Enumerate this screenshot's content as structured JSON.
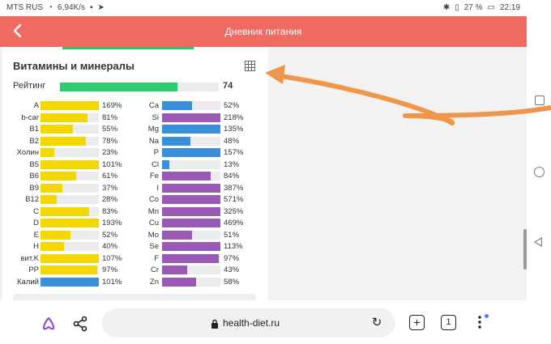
{
  "statusbar": {
    "carrier": "MTS RUS",
    "speed": "6,94K/s",
    "battery": "27 %",
    "time": "22:19"
  },
  "navbar": {
    "title": "Дневник питания"
  },
  "section": {
    "heading": "Витамины и минералы",
    "rating_label": "Рейтинг",
    "rating_value": "74",
    "rating_fraction": 0.74
  },
  "colors": {
    "header_bg": "#ef6b62",
    "vitamin": "#f2d800",
    "mineral_blue": "#3a8fdb",
    "mineral_purple": "#9b59b6",
    "rating": "#2ecc71",
    "annotation_arrow": "#f0964a"
  },
  "nutrients_left": [
    {
      "name": "A",
      "value": "169%",
      "pct": 169,
      "color": "#f2d800"
    },
    {
      "name": "b-car",
      "value": "81%",
      "pct": 81,
      "color": "#f2d800"
    },
    {
      "name": "B1",
      "value": "55%",
      "pct": 55,
      "color": "#f2d800"
    },
    {
      "name": "B2",
      "value": "78%",
      "pct": 78,
      "color": "#f2d800"
    },
    {
      "name": "Холин",
      "value": "23%",
      "pct": 23,
      "color": "#f2d800"
    },
    {
      "name": "B5",
      "value": "101%",
      "pct": 101,
      "color": "#f2d800"
    },
    {
      "name": "B6",
      "value": "61%",
      "pct": 61,
      "color": "#f2d800"
    },
    {
      "name": "B9",
      "value": "37%",
      "pct": 37,
      "color": "#f2d800"
    },
    {
      "name": "B12",
      "value": "28%",
      "pct": 28,
      "color": "#f2d800"
    },
    {
      "name": "C",
      "value": "83%",
      "pct": 83,
      "color": "#f2d800"
    },
    {
      "name": "D",
      "value": "193%",
      "pct": 193,
      "color": "#f2d800"
    },
    {
      "name": "E",
      "value": "52%",
      "pct": 52,
      "color": "#f2d800"
    },
    {
      "name": "H",
      "value": "40%",
      "pct": 40,
      "color": "#f2d800"
    },
    {
      "name": "вит.K",
      "value": "107%",
      "pct": 107,
      "color": "#f2d800"
    },
    {
      "name": "PP",
      "value": "97%",
      "pct": 97,
      "color": "#f2d800"
    },
    {
      "name": "Калий",
      "value": "101%",
      "pct": 101,
      "color": "#3a8fdb"
    }
  ],
  "nutrients_right": [
    {
      "name": "Ca",
      "value": "52%",
      "pct": 52,
      "color": "#3a8fdb"
    },
    {
      "name": "Si",
      "value": "218%",
      "pct": 218,
      "color": "#9b59b6"
    },
    {
      "name": "Mg",
      "value": "135%",
      "pct": 135,
      "color": "#3a8fdb"
    },
    {
      "name": "Na",
      "value": "48%",
      "pct": 48,
      "color": "#3a8fdb"
    },
    {
      "name": "P",
      "value": "157%",
      "pct": 157,
      "color": "#3a8fdb"
    },
    {
      "name": "Cl",
      "value": "13%",
      "pct": 13,
      "color": "#3a8fdb"
    },
    {
      "name": "Fe",
      "value": "84%",
      "pct": 84,
      "color": "#9b59b6"
    },
    {
      "name": "I",
      "value": "387%",
      "pct": 387,
      "color": "#9b59b6"
    },
    {
      "name": "Co",
      "value": "571%",
      "pct": 571,
      "color": "#9b59b6"
    },
    {
      "name": "Mn",
      "value": "325%",
      "pct": 325,
      "color": "#9b59b6"
    },
    {
      "name": "Cu",
      "value": "469%",
      "pct": 469,
      "color": "#9b59b6"
    },
    {
      "name": "Mo",
      "value": "51%",
      "pct": 51,
      "color": "#9b59b6"
    },
    {
      "name": "Se",
      "value": "113%",
      "pct": 113,
      "color": "#9b59b6"
    },
    {
      "name": "F",
      "value": "97%",
      "pct": 97,
      "color": "#9b59b6"
    },
    {
      "name": "Cr",
      "value": "43%",
      "pct": 43,
      "color": "#9b59b6"
    },
    {
      "name": "Zn",
      "value": "58%",
      "pct": 58,
      "color": "#9b59b6"
    }
  ],
  "browser": {
    "url": "health-diet.ru",
    "tab_count": "1"
  }
}
